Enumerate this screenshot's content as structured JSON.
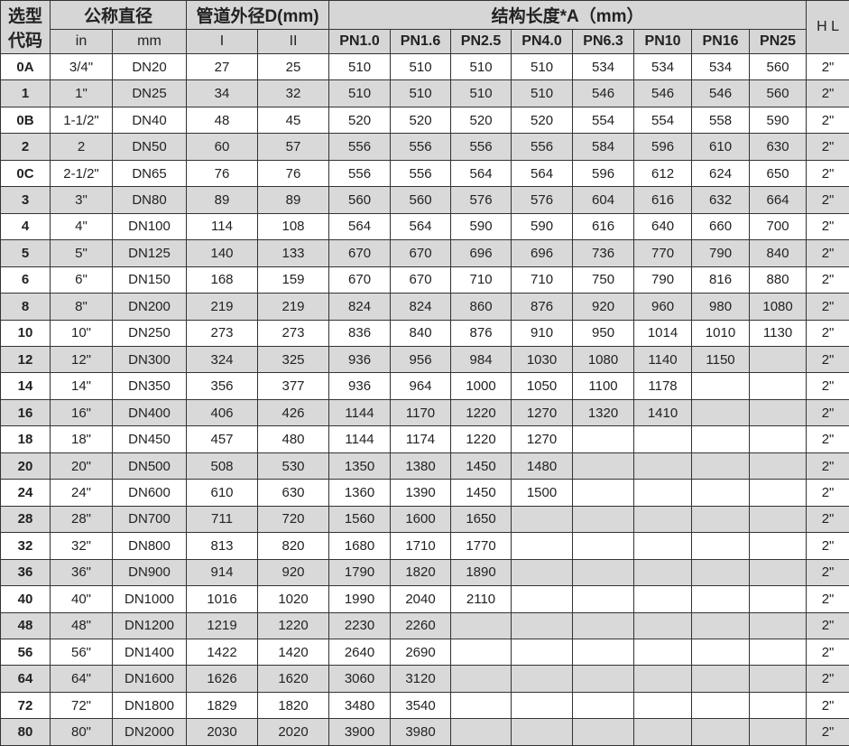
{
  "header": {
    "code": "选型代码",
    "nominal": "公称直径",
    "outer": "管道外径D(mm)",
    "length": "结构长度*A（mm）",
    "hl": "H L",
    "in": "in",
    "mm": "mm",
    "d1": "I",
    "d2": "II",
    "pn": [
      "PN1.0",
      "PN1.6",
      "PN2.5",
      "PN4.0",
      "PN6.3",
      "PN10",
      "PN16",
      "PN25"
    ]
  },
  "rows": [
    [
      "0A",
      "3/4\"",
      "DN20",
      "27",
      "25",
      "510",
      "510",
      "510",
      "510",
      "534",
      "534",
      "534",
      "560",
      "2\""
    ],
    [
      "1",
      "1\"",
      "DN25",
      "34",
      "32",
      "510",
      "510",
      "510",
      "510",
      "546",
      "546",
      "546",
      "560",
      "2\""
    ],
    [
      "0B",
      "1-1/2\"",
      "DN40",
      "48",
      "45",
      "520",
      "520",
      "520",
      "520",
      "554",
      "554",
      "558",
      "590",
      "2\""
    ],
    [
      "2",
      "2",
      "DN50",
      "60",
      "57",
      "556",
      "556",
      "556",
      "556",
      "584",
      "596",
      "610",
      "630",
      "2\""
    ],
    [
      "0C",
      "2-1/2\"",
      "DN65",
      "76",
      "76",
      "556",
      "556",
      "564",
      "564",
      "596",
      "612",
      "624",
      "650",
      "2\""
    ],
    [
      "3",
      "3\"",
      "DN80",
      "89",
      "89",
      "560",
      "560",
      "576",
      "576",
      "604",
      "616",
      "632",
      "664",
      "2\""
    ],
    [
      "4",
      "4\"",
      "DN100",
      "114",
      "108",
      "564",
      "564",
      "590",
      "590",
      "616",
      "640",
      "660",
      "700",
      "2\""
    ],
    [
      "5",
      "5\"",
      "DN125",
      "140",
      "133",
      "670",
      "670",
      "696",
      "696",
      "736",
      "770",
      "790",
      "840",
      "2\""
    ],
    [
      "6",
      "6\"",
      "DN150",
      "168",
      "159",
      "670",
      "670",
      "710",
      "710",
      "750",
      "790",
      "816",
      "880",
      "2\""
    ],
    [
      "8",
      "8\"",
      "DN200",
      "219",
      "219",
      "824",
      "824",
      "860",
      "876",
      "920",
      "960",
      "980",
      "1080",
      "2\""
    ],
    [
      "10",
      "10\"",
      "DN250",
      "273",
      "273",
      "836",
      "840",
      "876",
      "910",
      "950",
      "1014",
      "1010",
      "1130",
      "2\""
    ],
    [
      "12",
      "12\"",
      "DN300",
      "324",
      "325",
      "936",
      "956",
      "984",
      "1030",
      "1080",
      "1140",
      "1150",
      "",
      "2\""
    ],
    [
      "14",
      "14\"",
      "DN350",
      "356",
      "377",
      "936",
      "964",
      "1000",
      "1050",
      "1100",
      "1178",
      "",
      "",
      "2\""
    ],
    [
      "16",
      "16\"",
      "DN400",
      "406",
      "426",
      "1144",
      "1170",
      "1220",
      "1270",
      "1320",
      "1410",
      "",
      "",
      "2\""
    ],
    [
      "18",
      "18\"",
      "DN450",
      "457",
      "480",
      "1144",
      "1174",
      "1220",
      "1270",
      "",
      "",
      "",
      "",
      "2\""
    ],
    [
      "20",
      "20\"",
      "DN500",
      "508",
      "530",
      "1350",
      "1380",
      "1450",
      "1480",
      "",
      "",
      "",
      "",
      "2\""
    ],
    [
      "24",
      "24\"",
      "DN600",
      "610",
      "630",
      "1360",
      "1390",
      "1450",
      "1500",
      "",
      "",
      "",
      "",
      "2\""
    ],
    [
      "28",
      "28\"",
      "DN700",
      "711",
      "720",
      "1560",
      "1600",
      "1650",
      "",
      "",
      "",
      "",
      "",
      "2\""
    ],
    [
      "32",
      "32\"",
      "DN800",
      "813",
      "820",
      "1680",
      "1710",
      "1770",
      "",
      "",
      "",
      "",
      "",
      "2\""
    ],
    [
      "36",
      "36\"",
      "DN900",
      "914",
      "920",
      "1790",
      "1820",
      "1890",
      "",
      "",
      "",
      "",
      "",
      "2\""
    ],
    [
      "40",
      "40\"",
      "DN1000",
      "1016",
      "1020",
      "1990",
      "2040",
      "2110",
      "",
      "",
      "",
      "",
      "",
      "2\""
    ],
    [
      "48",
      "48\"",
      "DN1200",
      "1219",
      "1220",
      "2230",
      "2260",
      "",
      "",
      "",
      "",
      "",
      "",
      "2\""
    ],
    [
      "56",
      "56\"",
      "DN1400",
      "1422",
      "1420",
      "2640",
      "2690",
      "",
      "",
      "",
      "",
      "",
      "",
      "2\""
    ],
    [
      "64",
      "64\"",
      "DN1600",
      "1626",
      "1620",
      "3060",
      "3120",
      "",
      "",
      "",
      "",
      "",
      "",
      "2\""
    ],
    [
      "72",
      "72\"",
      "DN1800",
      "1829",
      "1820",
      "3480",
      "3540",
      "",
      "",
      "",
      "",
      "",
      "",
      "2\""
    ],
    [
      "80",
      "80\"",
      "DN2000",
      "2030",
      "2020",
      "3900",
      "3980",
      "",
      "",
      "",
      "",
      "",
      "",
      "2\""
    ]
  ],
  "colors": {
    "row_gray": "#d9d9d9",
    "header_gray": "#d6d6d6",
    "border": "#333333"
  }
}
